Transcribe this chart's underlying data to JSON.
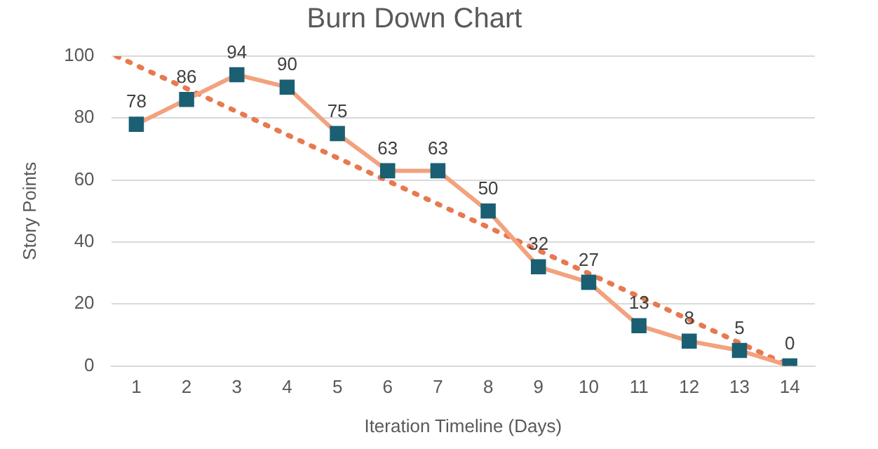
{
  "chart_data": {
    "type": "line",
    "title": "Burn Down Chart",
    "xlabel": "Iteration Timeline (Days)",
    "ylabel": "Story Points",
    "x": [
      1,
      2,
      3,
      4,
      5,
      6,
      7,
      8,
      9,
      10,
      11,
      12,
      13,
      14
    ],
    "series": [
      {
        "color": "#f2a27e",
        "values": [
          78,
          86,
          94,
          90,
          75,
          63,
          63,
          50,
          32,
          27,
          13,
          8,
          5,
          0
        ],
        "value_labels": [
          "78",
          "86",
          "94",
          "90",
          "75",
          "63",
          "63",
          "50",
          "32",
          "27",
          "13",
          "8",
          "5",
          "0"
        ],
        "marker": "square",
        "line_style": "solid"
      },
      {
        "type": "line",
        "color": "#e8794f",
        "x": [
          0.6,
          14
        ],
        "values": [
          100,
          0
        ],
        "marker": "none",
        "line_style": "dotted"
      }
    ],
    "xlim": [
      0.5,
      14.5
    ],
    "xticks": [
      1,
      2,
      3,
      4,
      5,
      6,
      7,
      8,
      9,
      10,
      11,
      12,
      13,
      14
    ],
    "ylim": [
      0,
      100
    ],
    "yticks": [
      0,
      20,
      40,
      60,
      80,
      100
    ],
    "grid": "y",
    "legend": false
  }
}
